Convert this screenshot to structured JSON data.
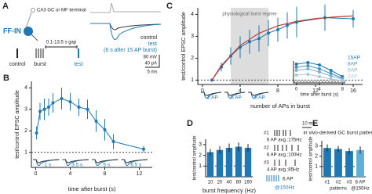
{
  "panel_a": {
    "label": "A",
    "cell": "FF-IN",
    "input": "CA3 GC or MF terminal",
    "gap": "0.1-13.5 s gap",
    "protocol": [
      "control",
      "burst",
      "test"
    ],
    "legend": [
      "control",
      "test",
      "(6 s after 15 AP burst)"
    ],
    "scale": [
      "80 mV",
      "40 pA",
      "5 ms"
    ]
  },
  "chart_data": [
    {
      "type": "line",
      "label": "B",
      "color": "#1f78b4",
      "x": [
        0.1,
        0.5,
        1,
        1.5,
        2,
        3,
        4,
        5,
        6,
        7,
        8,
        9,
        12.5
      ],
      "values": [
        1.9,
        2.9,
        3.0,
        3.1,
        3.3,
        3.5,
        3.35,
        3.1,
        3.0,
        2.45,
        2.05,
        1.5,
        1.15
      ],
      "errors": [
        0.3,
        0.4,
        0.5,
        0.4,
        0.45,
        0.5,
        0.4,
        0.4,
        0.45,
        0.5,
        0.5,
        0.35,
        0.15
      ],
      "xlim": [
        -0.5,
        13.5
      ],
      "xticks": [
        0,
        4,
        8,
        12
      ],
      "ylim": [
        0.3,
        4.3
      ],
      "yticks": [
        1,
        2,
        3,
        4
      ],
      "reference_line": 1,
      "xlabel": "time after burst (s)",
      "ylabel": "test/control EPSC amplitude",
      "trace_labels": [
        "1 s",
        "3.5 s",
        "5 s",
        "6.5 s"
      ]
    },
    {
      "type": "line",
      "label": "C",
      "color": "#1f78b4",
      "x": [
        1,
        2,
        3,
        4,
        5,
        6,
        7,
        8,
        9,
        10,
        13,
        16
      ],
      "values": [
        1.0,
        1.6,
        2.1,
        2.5,
        2.75,
        2.9,
        3.15,
        3.3,
        3.5,
        3.65,
        3.85,
        3.8
      ],
      "errors": [
        0.05,
        0.2,
        0.4,
        0.5,
        0.55,
        0.6,
        0.6,
        0.55,
        0.6,
        0.7,
        0.6,
        0.4
      ],
      "fit": {
        "color": "#c0392b",
        "x": [
          1,
          2,
          4,
          6,
          8,
          10,
          12,
          14,
          16
        ],
        "values": [
          1.0,
          1.66,
          2.58,
          3.14,
          3.48,
          3.68,
          3.81,
          3.88,
          3.93
        ]
      },
      "region": [
        3,
        7
      ],
      "region_label": "physiological burst regime",
      "xlim": [
        -0.5,
        17
      ],
      "xticks": [
        0,
        4,
        8,
        12,
        16
      ],
      "ylim": [
        0.8,
        4.3
      ],
      "yticks": [
        1,
        2,
        3,
        4
      ],
      "reference_line": 1,
      "xlabel": "number of APs in burst",
      "ylabel": "test/control EPSC amplitude",
      "trace_labels": [
        "2 AP",
        "5 AP",
        "9 AP"
      ]
    },
    {
      "type": "line",
      "x": [
        0,
        2,
        4,
        6,
        8
      ],
      "series": [
        {
          "name": "15AP",
          "color": "#1f78b4",
          "values": [
            3.2,
            3.4,
            3.1,
            2.4,
            1.6
          ]
        },
        {
          "name": "8AP",
          "color": "#4a90c0",
          "values": [
            2.8,
            3.0,
            2.6,
            2.0,
            1.4
          ]
        },
        {
          "name": "5AP",
          "color": "#7fb0d0",
          "values": [
            2.4,
            2.6,
            2.2,
            1.7,
            1.3
          ]
        },
        {
          "name": "2AP",
          "color": "#aac8dc",
          "values": [
            1.8,
            1.9,
            1.6,
            1.3,
            1.1
          ]
        }
      ],
      "xlim": [
        -0.5,
        8.5
      ],
      "xticks": [
        0,
        4,
        8
      ],
      "ylim": [
        0.8,
        3.6
      ],
      "reference_line": 1,
      "xlabel": "time after burst (s)",
      "legend": "right"
    },
    {
      "type": "bar",
      "label": "D",
      "color": "#1f78b4",
      "categories": [
        "10",
        "20",
        "40",
        "80",
        "160"
      ],
      "values": [
        2.3,
        2.5,
        2.7,
        2.8,
        2.7
      ],
      "errors": [
        0.3,
        0.35,
        0.4,
        0.4,
        0.35
      ],
      "ylim": [
        0,
        3.5
      ],
      "yticks": [
        1,
        2,
        3
      ],
      "reference_line": 1,
      "xlabel": "burst frequency (Hz)",
      "ylabel": "test/control amplitude"
    },
    {
      "type": "bar",
      "label": "E",
      "colors": [
        "#1f78b4",
        "#1f78b4",
        "#1f78b4",
        "#5fb0d8"
      ],
      "title": "in vivo-derived GC burst patterns",
      "categories": [
        "#1",
        "#2",
        "#3",
        "6 AP"
      ],
      "group_labels": [
        "patterns",
        "@150Hz"
      ],
      "values": [
        2.8,
        2.7,
        2.5,
        2.6
      ],
      "errors": [
        0.35,
        0.3,
        0.3,
        0.35
      ],
      "ylim": [
        0,
        3.5
      ],
      "yticks": [
        1,
        2,
        3
      ],
      "reference_line": 1,
      "ylabel": "test/control amplitude",
      "patterns": [
        {
          "id": "#1",
          "label": "6 AP avg.:175Hz"
        },
        {
          "id": "#2",
          "label": "6 AP avg.:100Hz"
        },
        {
          "id": "#3",
          "label": "4 AP avg.:85Hz"
        }
      ],
      "scale": "10 ms",
      "reference": "6 AP",
      "reference_rate": "@150Hz"
    }
  ]
}
